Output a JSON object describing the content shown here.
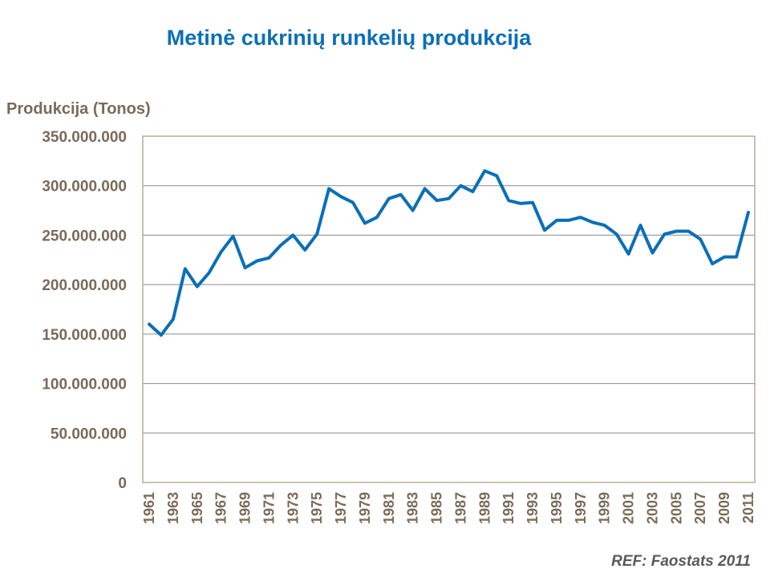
{
  "chart_data": {
    "type": "line",
    "title": "Metinė cukrinių runkelių produkcija",
    "ylabel": "Produkcija (Tonos)",
    "xlabel": "",
    "source": "REF: Faostats 2011",
    "ylim": [
      0,
      350000000
    ],
    "yticks": [
      "0",
      "50.000.000",
      "100.000.000",
      "150.000.000",
      "200.000.000",
      "250.000.000",
      "300.000.000",
      "350.000.000"
    ],
    "xticks": [
      "1961",
      "1963",
      "1965",
      "1967",
      "1969",
      "1971",
      "1973",
      "1975",
      "1977",
      "1979",
      "1981",
      "1983",
      "1985",
      "1987",
      "1989",
      "1991",
      "1993",
      "1995",
      "1997",
      "1999",
      "2001",
      "2003",
      "2005",
      "2007",
      "2009",
      "2011"
    ],
    "grid": true,
    "colors": {
      "line": "#0B6FB8",
      "title": "#0B6FB8",
      "axis_text": "#7A6A58",
      "frame": "#B5AD94",
      "grid": "#8C8C8C"
    },
    "x": [
      1961,
      1962,
      1963,
      1964,
      1965,
      1966,
      1967,
      1968,
      1969,
      1970,
      1971,
      1972,
      1973,
      1974,
      1975,
      1976,
      1977,
      1978,
      1979,
      1980,
      1981,
      1982,
      1983,
      1984,
      1985,
      1986,
      1987,
      1988,
      1989,
      1990,
      1991,
      1992,
      1993,
      1994,
      1995,
      1996,
      1997,
      1998,
      1999,
      2000,
      2001,
      2002,
      2003,
      2004,
      2005,
      2006,
      2007,
      2008,
      2009,
      2010,
      2011
    ],
    "series": [
      {
        "values": [
          160000000,
          149000000,
          165000000,
          216000000,
          198000000,
          212000000,
          233000000,
          249000000,
          217000000,
          224000000,
          227000000,
          240000000,
          250000000,
          235000000,
          251000000,
          297000000,
          289000000,
          283000000,
          262000000,
          268000000,
          287000000,
          291000000,
          275000000,
          297000000,
          285000000,
          287000000,
          300000000,
          294000000,
          315000000,
          310000000,
          285000000,
          282000000,
          283000000,
          255000000,
          265000000,
          265000000,
          268000000,
          263000000,
          260000000,
          251000000,
          231000000,
          260000000,
          232000000,
          251000000,
          254000000,
          254000000,
          246000000,
          221000000,
          228000000,
          228000000,
          273000000
        ]
      }
    ]
  }
}
